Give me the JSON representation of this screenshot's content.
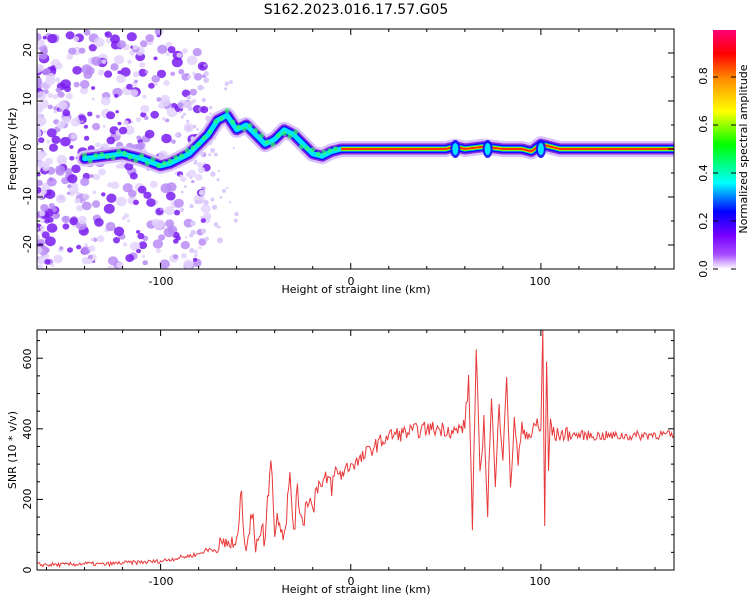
{
  "figure": {
    "title": "S162.2023.016.17.57.G05"
  },
  "chart_data": [
    {
      "type": "heatmap",
      "description_axes": "spectrogram",
      "xlabel": "Height of straight line (km)",
      "ylabel": "Frequency (Hz)",
      "xlim": [
        -165,
        170
      ],
      "ylim": [
        -25,
        25
      ],
      "xticks": [
        "-100",
        "0",
        "100"
      ],
      "yticks": [
        "20",
        "10",
        "0",
        "-10",
        "-20"
      ],
      "colorbar": {
        "label": "Normalized spectral amplitude",
        "range": [
          0.0,
          1.0
        ],
        "ticks": [
          "0.0",
          "0.2",
          "0.4",
          "0.6",
          "0.8"
        ],
        "colors": [
          "#ffffff",
          "#8800ff",
          "#0000ff",
          "#00ffff",
          "#00ff00",
          "#ffff00",
          "#ff8800",
          "#ff0000",
          "#ff0088"
        ]
      },
      "ridge": {
        "x": [
          -140,
          -130,
          -120,
          -110,
          -100,
          -95,
          -90,
          -85,
          -80,
          -75,
          -70,
          -65,
          -60,
          -55,
          -50,
          -45,
          -40,
          -35,
          -30,
          -25,
          -20,
          -15,
          -10,
          -5,
          0,
          10,
          20,
          30,
          40,
          50,
          55,
          60,
          70,
          80,
          90,
          95,
          100,
          110,
          120,
          130,
          140,
          150,
          160,
          170
        ],
        "y": [
          -2,
          -1.5,
          -1,
          -2,
          -3.5,
          -3,
          -2,
          -1,
          1,
          3,
          6,
          7,
          4,
          5,
          3,
          1,
          2,
          4,
          3,
          1,
          -1,
          -1.5,
          -0.5,
          0,
          0,
          0,
          0,
          0,
          0,
          0,
          0.5,
          0,
          0.5,
          0,
          0,
          -0.5,
          1,
          0,
          0,
          0,
          0,
          0,
          0,
          0
        ]
      }
    },
    {
      "type": "line",
      "xlabel": "Height of straight line (km)",
      "ylabel": "SNR (10 * v/v)",
      "xlim": [
        -165,
        170
      ],
      "ylim": [
        0,
        680
      ],
      "xticks": [
        "-100",
        "0",
        "100"
      ],
      "yticks": [
        "600",
        "400",
        "200",
        "0"
      ],
      "series": [
        {
          "color": "#e8393a",
          "x": [
            -165,
            -150,
            -140,
            -130,
            -120,
            -110,
            -100,
            -95,
            -90,
            -85,
            -80,
            -75,
            -70,
            -65,
            -60,
            -58,
            -55,
            -52,
            -50,
            -48,
            -45,
            -42,
            -40,
            -38,
            -35,
            -32,
            -30,
            -28,
            -25,
            -22,
            -20,
            -18,
            -15,
            -12,
            -10,
            -8,
            -5,
            -2,
            0,
            5,
            10,
            15,
            20,
            30,
            40,
            50,
            55,
            60,
            62,
            64,
            66,
            68,
            70,
            72,
            74,
            76,
            78,
            80,
            82,
            84,
            86,
            88,
            90,
            95,
            98,
            100,
            101,
            102,
            103,
            104,
            105,
            106,
            108,
            110,
            120,
            130,
            140,
            150,
            160,
            170
          ],
          "y": [
            15,
            15,
            18,
            16,
            20,
            22,
            25,
            30,
            35,
            40,
            45,
            60,
            55,
            80,
            60,
            220,
            70,
            150,
            80,
            120,
            90,
            330,
            110,
            160,
            100,
            260,
            120,
            210,
            140,
            220,
            160,
            250,
            230,
            260,
            240,
            280,
            270,
            290,
            300,
            310,
            340,
            360,
            380,
            390,
            400,
            400,
            390,
            410,
            540,
            140,
            620,
            260,
            420,
            180,
            500,
            230,
            460,
            330,
            560,
            210,
            440,
            300,
            400,
            380,
            420,
            390,
            680,
            140,
            590,
            280,
            430,
            390,
            380,
            385,
            382,
            380,
            380,
            380,
            385,
            380
          ]
        }
      ]
    }
  ]
}
